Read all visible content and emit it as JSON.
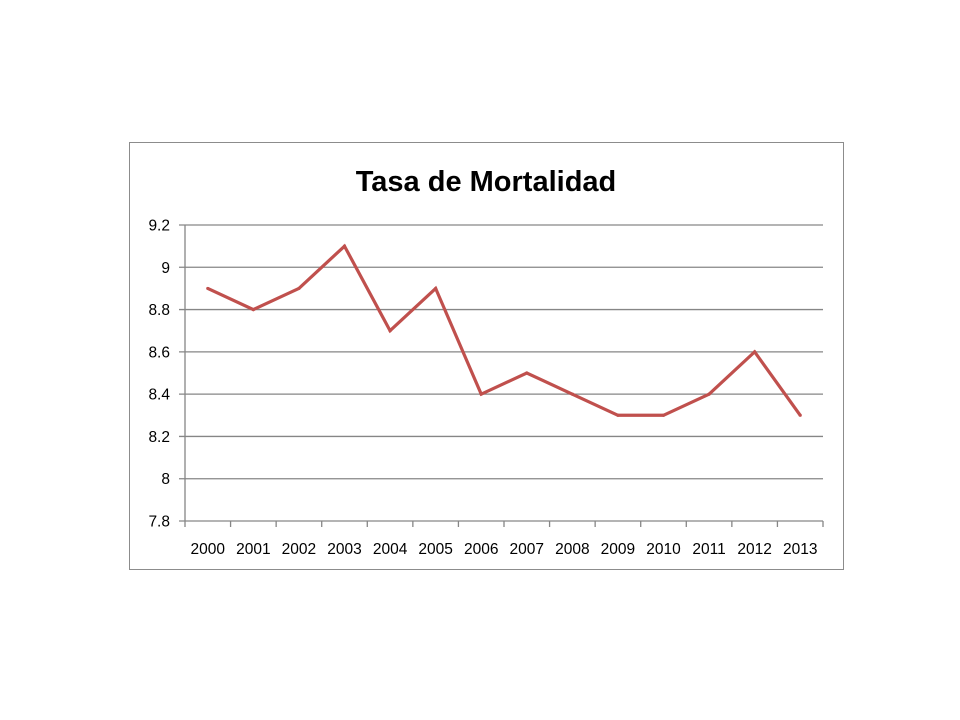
{
  "chart_data": {
    "type": "line",
    "title": "Tasa de Mortalidad",
    "xlabel": "",
    "ylabel": "",
    "categories": [
      "2000",
      "2001",
      "2002",
      "2003",
      "2004",
      "2005",
      "2006",
      "2007",
      "2008",
      "2009",
      "2010",
      "2011",
      "2012",
      "2013"
    ],
    "series": [
      {
        "values": [
          8.9,
          8.8,
          8.9,
          9.1,
          8.7,
          8.9,
          8.4,
          8.5,
          8.4,
          8.3,
          8.3,
          8.4,
          8.6,
          8.3
        ]
      }
    ],
    "ylim": [
      7.8,
      9.2
    ],
    "yticks": [
      "7.8",
      "8",
      "8.2",
      "8.4",
      "8.6",
      "8.8",
      "9",
      "9.2"
    ],
    "grid": true,
    "legend": "none",
    "colors": {
      "line": "#c0504d",
      "grid": "#868686",
      "axis": "#868686"
    }
  }
}
